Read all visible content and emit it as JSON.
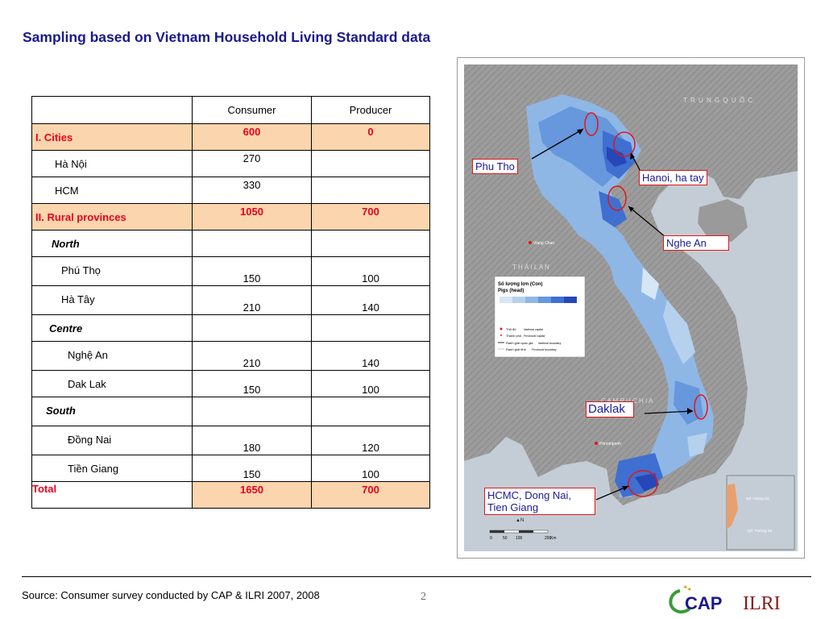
{
  "title": "Sampling based on Vietnam Household Living Standard data",
  "table": {
    "headers": [
      "",
      "Consumer",
      "Producer"
    ],
    "rows": [
      {
        "label": "I. Cities",
        "consumer": "600",
        "producer": "0"
      },
      {
        "label": "Hà Nội",
        "consumer": "270",
        "producer": ""
      },
      {
        "label": "HCM",
        "consumer": "330",
        "producer": ""
      },
      {
        "label": "II. Rural provinces",
        "consumer": "1050",
        "producer": "700"
      },
      {
        "label": "North",
        "consumer": "",
        "producer": ""
      },
      {
        "label": "Phú Thọ",
        "consumer": "150",
        "producer": "100"
      },
      {
        "label": "Hà Tây",
        "consumer": "210",
        "producer": "140"
      },
      {
        "label": "Centre",
        "consumer": "",
        "producer": ""
      },
      {
        "label": "Nghệ An",
        "consumer": "210",
        "producer": "140"
      },
      {
        "label": "Dak Lak",
        "consumer": "150",
        "producer": "100"
      },
      {
        "label": "South",
        "consumer": "",
        "producer": ""
      },
      {
        "label": "Đồng Nai",
        "consumer": "180",
        "producer": "120"
      },
      {
        "label": "Tiền Giang",
        "consumer": "150",
        "producer": "100"
      },
      {
        "label": "Total",
        "consumer": "1650",
        "producer": "700"
      }
    ]
  },
  "map": {
    "callouts": {
      "phu_tho": "Phu Tho",
      "hanoi": "Hanoi, ha tay",
      "nghe_an": "Nghe An",
      "daklak": "Daklak",
      "hcmc_line1": "HCMC, Dong Nai,",
      "hcmc_line2": "Tien Giang"
    },
    "country_labels": {
      "china": "T R U N G   Q U Ố C",
      "thailand": "T H Á I   L A N",
      "cambodia": "C A M   P U   C H I A"
    },
    "city_labels": {
      "vientiane": "Viang Chan",
      "phnompenh": "Phnompenh"
    },
    "legend": {
      "title1": "Số lượng lợn (Con)",
      "title2": "Pigs (head)",
      "capital": "Thủ đô",
      "capital_en": "National capital",
      "province_capital": "Thành phố",
      "province_capital_en": "Provincial capital",
      "national_boundary": "Ranh giới quốc gia",
      "national_boundary_en": "National boundary",
      "provincial_boundary": "Ranh giới tỉnh",
      "provincial_boundary_en": "Provincial boundary"
    },
    "inset_labels": {
      "paracel": "Qđ. Hoàng Sa",
      "spratly": "Qđ. Trường Sa"
    },
    "scale": {
      "labels": [
        "0",
        "50",
        "100",
        "200"
      ],
      "unit": "Km"
    },
    "colors": {
      "pig_density_ramp": [
        "#d7e6f5",
        "#b5d1ee",
        "#8fb7e6",
        "#6797dc",
        "#3f6fd0",
        "#2547b8"
      ],
      "callout_border": "#e01818",
      "callout_text": "#1a1a9c"
    }
  },
  "footer": {
    "source": "Source: Consumer survey conducted by CAP & ILRI 2007, 2008",
    "page": "2",
    "logo_cap": "CAP",
    "logo_ilri": "ILRI"
  }
}
